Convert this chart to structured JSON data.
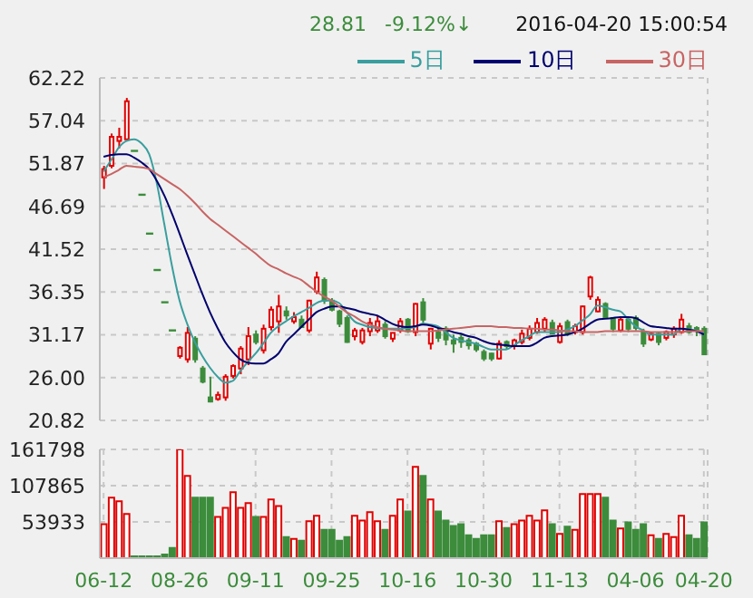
{
  "chart_data": [
    {
      "type": "candlestick",
      "annotations": [
        "28.81",
        "-9.12%↓",
        "2016-04-20 15:00:54"
      ],
      "categories": [
        null,
        null,
        null,
        null,
        null,
        null,
        null,
        null,
        null,
        null,
        null,
        null,
        null,
        null,
        null,
        null,
        null,
        null,
        null,
        null,
        null,
        null,
        null,
        null,
        null,
        null,
        null,
        null,
        null,
        null,
        null,
        null,
        null,
        null,
        null,
        null,
        null,
        null,
        null,
        null,
        null,
        null,
        null,
        null,
        null,
        null,
        null,
        null,
        null,
        null,
        null,
        null,
        null,
        null,
        null,
        null,
        null,
        null,
        null,
        null,
        null,
        null,
        null,
        null,
        null,
        null,
        null,
        null,
        null,
        null,
        null,
        null,
        null,
        null,
        null,
        null,
        null,
        null,
        null,
        null
      ],
      "ohlc": [
        [
          50.2,
          51.6,
          48.8,
          51.2
        ],
        [
          51.6,
          55.5,
          51.3,
          55.1
        ],
        [
          54.6,
          56.2,
          53.7,
          55.1
        ],
        [
          54.8,
          59.8,
          54.8,
          59.4
        ],
        [
          53.4,
          53.4,
          53.4,
          53.4
        ],
        [
          48.1,
          48.1,
          48.1,
          48.1
        ],
        [
          43.4,
          43.4,
          43.4,
          43.4
        ],
        [
          39.0,
          39.0,
          39.0,
          39.0
        ],
        [
          35.1,
          35.1,
          35.1,
          35.1
        ],
        [
          31.7,
          31.7,
          31.7,
          31.7
        ],
        [
          28.6,
          29.8,
          28.3,
          29.6
        ],
        [
          28.2,
          32.1,
          27.8,
          31.4
        ],
        [
          30.7,
          31.0,
          27.8,
          28.2
        ],
        [
          27.1,
          27.4,
          25.3,
          25.5
        ],
        [
          23.6,
          26.1,
          23.0,
          23.1
        ],
        [
          23.4,
          24.3,
          23.2,
          23.9
        ],
        [
          23.6,
          26.4,
          23.2,
          26.1
        ],
        [
          26.2,
          27.6,
          25.9,
          27.4
        ],
        [
          27.1,
          29.8,
          26.4,
          29.5
        ],
        [
          28.2,
          32.1,
          27.5,
          31.0
        ],
        [
          31.2,
          31.7,
          30.0,
          30.3
        ],
        [
          29.3,
          32.4,
          28.9,
          31.9
        ],
        [
          32.1,
          34.6,
          31.7,
          34.2
        ],
        [
          32.8,
          36.0,
          31.4,
          34.6
        ],
        [
          34.0,
          34.6,
          33.0,
          33.5
        ],
        [
          32.8,
          33.9,
          32.5,
          33.3
        ],
        [
          33.0,
          33.5,
          32.0,
          32.1
        ],
        [
          31.7,
          35.4,
          31.4,
          35.3
        ],
        [
          36.4,
          38.8,
          36.1,
          38.1
        ],
        [
          37.8,
          38.1,
          34.9,
          35.3
        ],
        [
          35.3,
          35.6,
          34.0,
          34.2
        ],
        [
          34.0,
          34.2,
          32.1,
          32.5
        ],
        [
          33.2,
          33.5,
          30.2,
          30.3
        ],
        [
          31.0,
          32.0,
          30.5,
          31.7
        ],
        [
          30.3,
          32.0,
          30.0,
          31.7
        ],
        [
          31.6,
          33.2,
          31.0,
          32.6
        ],
        [
          31.7,
          33.5,
          31.4,
          32.8
        ],
        [
          32.4,
          32.8,
          30.7,
          31.0
        ],
        [
          30.7,
          31.4,
          30.3,
          31.4
        ],
        [
          31.7,
          33.2,
          31.4,
          32.8
        ],
        [
          33.0,
          33.2,
          31.4,
          31.6
        ],
        [
          31.5,
          35.0,
          31.0,
          34.9
        ],
        [
          35.1,
          35.6,
          32.6,
          33.0
        ],
        [
          30.1,
          32.0,
          29.4,
          31.9
        ],
        [
          31.5,
          31.9,
          30.3,
          30.8
        ],
        [
          31.9,
          32.2,
          29.9,
          30.6
        ],
        [
          30.5,
          31.2,
          29.0,
          30.1
        ],
        [
          30.8,
          31.2,
          29.6,
          30.3
        ],
        [
          30.5,
          30.8,
          29.4,
          29.9
        ],
        [
          30.1,
          30.3,
          29.1,
          29.4
        ],
        [
          29.1,
          29.4,
          28.0,
          28.3
        ],
        [
          28.9,
          29.0,
          28.0,
          28.3
        ],
        [
          28.3,
          30.5,
          28.2,
          30.1
        ],
        [
          30.3,
          30.5,
          29.4,
          29.8
        ],
        [
          29.8,
          30.7,
          29.4,
          30.5
        ],
        [
          30.3,
          31.8,
          30.0,
          31.3
        ],
        [
          30.8,
          32.3,
          30.5,
          31.9
        ],
        [
          31.5,
          33.2,
          31.3,
          32.6
        ],
        [
          31.9,
          33.3,
          31.5,
          33.0
        ],
        [
          32.6,
          33.0,
          31.2,
          31.3
        ],
        [
          30.3,
          32.6,
          30.1,
          32.2
        ],
        [
          32.7,
          33.0,
          31.0,
          31.3
        ],
        [
          31.5,
          32.5,
          31.2,
          32.2
        ],
        [
          31.5,
          34.7,
          31.2,
          34.6
        ],
        [
          35.8,
          38.3,
          35.4,
          38.1
        ],
        [
          34.0,
          35.8,
          33.9,
          35.4
        ],
        [
          34.9,
          35.1,
          33.1,
          33.3
        ],
        [
          33.2,
          33.3,
          31.5,
          31.9
        ],
        [
          31.7,
          33.2,
          31.5,
          33.0
        ],
        [
          33.0,
          33.3,
          31.5,
          31.9
        ],
        [
          33.2,
          33.5,
          31.7,
          32.0
        ],
        [
          31.5,
          31.9,
          29.7,
          30.1
        ],
        [
          30.6,
          31.5,
          30.4,
          31.3
        ],
        [
          31.3,
          31.5,
          29.9,
          30.3
        ],
        [
          30.8,
          31.7,
          30.5,
          31.5
        ],
        [
          31.2,
          32.2,
          30.8,
          31.9
        ],
        [
          31.5,
          33.7,
          31.3,
          33.0
        ],
        [
          32.2,
          32.6,
          31.3,
          31.5
        ],
        [
          32.0,
          32.2,
          31.0,
          31.7
        ],
        [
          31.9,
          32.2,
          28.81,
          28.81
        ]
      ],
      "colors": [
        "#e00000",
        "#e00000",
        "#e00000",
        "#e00000",
        "#3c8c3c",
        "#3c8c3c",
        "#3c8c3c",
        "#3c8c3c",
        "#3c8c3c",
        "#3c8c3c",
        "#e00000",
        "#e00000",
        "#3c8c3c",
        "#3c8c3c",
        "#3c8c3c",
        "#e00000",
        "#e00000",
        "#e00000",
        "#e00000",
        "#e00000",
        "#3c8c3c",
        "#e00000",
        "#e00000",
        "#e00000",
        "#3c8c3c",
        "#e00000",
        "#3c8c3c",
        "#e00000",
        "#e00000",
        "#3c8c3c",
        "#3c8c3c",
        "#3c8c3c",
        "#3c8c3c",
        "#e00000",
        "#e00000",
        "#e00000",
        "#e00000",
        "#3c8c3c",
        "#e00000",
        "#e00000",
        "#3c8c3c",
        "#e00000",
        "#3c8c3c",
        "#e00000",
        "#3c8c3c",
        "#3c8c3c",
        "#3c8c3c",
        "#3c8c3c",
        "#3c8c3c",
        "#3c8c3c",
        "#3c8c3c",
        "#3c8c3c",
        "#e00000",
        "#3c8c3c",
        "#e00000",
        "#e00000",
        "#e00000",
        "#e00000",
        "#e00000",
        "#3c8c3c",
        "#e00000",
        "#3c8c3c",
        "#e00000",
        "#e00000",
        "#e00000",
        "#e00000",
        "#3c8c3c",
        "#3c8c3c",
        "#e00000",
        "#3c8c3c",
        "#3c8c3c",
        "#3c8c3c",
        "#e00000",
        "#3c8c3c",
        "#e00000",
        "#e00000",
        "#e00000",
        "#3c8c3c",
        "#3c8c3c",
        "#3c8c3c"
      ],
      "series": [
        {
          "name": "5日",
          "type": "line",
          "color": "#3a9e9e",
          "values": [
            50.9,
            52.3,
            53.8,
            54.6,
            54.8,
            54.3,
            53.0,
            49.5,
            44.5,
            39.5,
            35.3,
            32.5,
            30.3,
            28.6,
            27.2,
            26.1,
            25.4,
            25.6,
            26.8,
            27.9,
            28.9,
            30.1,
            31.4,
            32.2,
            32.8,
            33.4,
            33.9,
            34.4,
            35.0,
            35.3,
            35.3,
            35.0,
            33.9,
            32.8,
            32.4,
            32.1,
            32.0,
            31.9,
            31.9,
            31.9,
            32.0,
            32.1,
            32.5,
            32.4,
            32.2,
            31.5,
            30.8,
            30.5,
            30.3,
            30.1,
            29.7,
            29.4,
            29.4,
            29.4,
            29.9,
            30.5,
            31.0,
            31.5,
            31.5,
            31.5,
            31.5,
            31.8,
            32.2,
            32.9,
            33.6,
            34.7,
            34.5,
            34.2,
            34.0,
            33.1,
            32.2,
            31.7,
            31.2,
            31.2,
            31.2,
            31.2,
            31.9,
            31.8,
            31.7,
            31.5
          ]
        },
        {
          "name": "10日",
          "type": "line",
          "color": "#00006e",
          "values": [
            52.7,
            52.9,
            53.0,
            53.0,
            52.6,
            52.0,
            51.2,
            49.8,
            48.0,
            45.8,
            43.4,
            40.9,
            38.5,
            36.1,
            33.9,
            32.0,
            30.3,
            29.1,
            28.2,
            27.8,
            27.7,
            27.7,
            28.2,
            28.9,
            30.3,
            31.2,
            32.1,
            33.0,
            33.9,
            34.3,
            34.6,
            34.6,
            34.4,
            34.2,
            33.9,
            33.7,
            33.5,
            33.0,
            32.5,
            32.2,
            32.1,
            32.2,
            32.4,
            32.3,
            32.0,
            31.8,
            31.5,
            31.3,
            31.0,
            30.8,
            30.4,
            30.1,
            30.0,
            29.9,
            29.8,
            29.8,
            29.8,
            30.2,
            30.8,
            31.0,
            31.1,
            31.2,
            31.5,
            31.9,
            32.5,
            33.0,
            33.1,
            33.2,
            33.3,
            33.3,
            33.2,
            32.7,
            32.2,
            32.1,
            32.0,
            31.9,
            31.9,
            31.8,
            31.6,
            31.2
          ]
        },
        {
          "name": "30日",
          "type": "line",
          "color": "#c86464",
          "values": [
            50.2,
            50.6,
            51.1,
            51.6,
            51.5,
            51.4,
            51.2,
            50.6,
            50.0,
            49.4,
            48.8,
            48.0,
            47.1,
            46.1,
            45.2,
            44.5,
            43.8,
            43.1,
            42.4,
            41.7,
            41.0,
            40.2,
            39.5,
            39.1,
            38.6,
            38.2,
            37.8,
            37.1,
            36.4,
            35.8,
            35.3,
            34.6,
            33.9,
            33.4,
            32.8,
            32.4,
            32.1,
            31.9,
            31.8,
            31.7,
            31.6,
            31.6,
            31.6,
            31.6,
            31.7,
            31.8,
            31.9,
            32.0,
            32.1,
            32.2,
            32.2,
            32.2,
            32.1,
            32.1,
            32.0,
            32.0,
            31.9,
            31.9,
            31.8,
            31.8,
            31.7,
            31.6,
            31.6,
            31.5,
            31.5,
            31.5,
            31.6,
            31.6,
            31.6,
            31.6,
            31.6,
            31.6,
            31.5,
            31.5,
            31.5,
            31.5,
            31.5,
            31.6,
            31.6,
            31.6
          ]
        }
      ],
      "ylim": [
        20.82,
        62.22
      ],
      "yticks": [
        {
          "value": 20.82,
          "label": "20.82"
        },
        {
          "value": 26,
          "label": "26.00"
        },
        31.17,
        36.35,
        41.52,
        46.69,
        51.87,
        57.04,
        62.22
      ],
      "grid": true,
      "legend": "top right",
      "tick_labels": "y"
    },
    {
      "type": "bar",
      "categories": [
        "06-12",
        null,
        null,
        null,
        null,
        null,
        null,
        null,
        null,
        null,
        "08-26",
        null,
        null,
        null,
        null,
        null,
        null,
        null,
        null,
        null,
        "09-11",
        null,
        null,
        null,
        null,
        null,
        null,
        null,
        null,
        null,
        "09-25",
        null,
        null,
        null,
        null,
        null,
        null,
        null,
        null,
        null,
        "10-16",
        null,
        null,
        null,
        null,
        null,
        null,
        null,
        null,
        null,
        "10-30",
        null,
        null,
        null,
        null,
        null,
        null,
        null,
        null,
        null,
        "11-13",
        null,
        null,
        null,
        null,
        null,
        null,
        null,
        null,
        null,
        "04-06",
        null,
        null,
        null,
        null,
        null,
        null,
        null,
        null,
        "04-20"
      ],
      "values": [
        50400,
        90000,
        84600,
        65700,
        2700,
        2700,
        2700,
        2700,
        5400,
        15300,
        161798,
        122400,
        90000,
        90000,
        90000,
        61200,
        74700,
        98100,
        74700,
        81900,
        61200,
        61200,
        87300,
        77400,
        31500,
        28800,
        26100,
        54900,
        63000,
        42300,
        42300,
        26100,
        31500,
        63000,
        55800,
        68400,
        54900,
        42300,
        63000,
        87300,
        69300,
        135900,
        122400,
        87300,
        69300,
        55800,
        47700,
        50400,
        34200,
        28800,
        34200,
        34200,
        54900,
        45000,
        50400,
        55800,
        63000,
        55800,
        71100,
        50400,
        36000,
        46800,
        42300,
        95400,
        95400,
        95400,
        90000,
        55800,
        44100,
        53100,
        42300,
        50400,
        34200,
        28800,
        36000,
        31500,
        63000,
        34200,
        28800,
        53100
      ],
      "colors": [
        "#e00000",
        "#e00000",
        "#e00000",
        "#e00000",
        "#3c8c3c",
        "#3c8c3c",
        "#3c8c3c",
        "#3c8c3c",
        "#3c8c3c",
        "#3c8c3c",
        "#e00000",
        "#e00000",
        "#3c8c3c",
        "#3c8c3c",
        "#3c8c3c",
        "#e00000",
        "#e00000",
        "#e00000",
        "#e00000",
        "#e00000",
        "#3c8c3c",
        "#e00000",
        "#e00000",
        "#e00000",
        "#3c8c3c",
        "#e00000",
        "#3c8c3c",
        "#e00000",
        "#e00000",
        "#3c8c3c",
        "#3c8c3c",
        "#3c8c3c",
        "#3c8c3c",
        "#e00000",
        "#e00000",
        "#e00000",
        "#e00000",
        "#3c8c3c",
        "#e00000",
        "#e00000",
        "#3c8c3c",
        "#e00000",
        "#3c8c3c",
        "#e00000",
        "#3c8c3c",
        "#3c8c3c",
        "#3c8c3c",
        "#3c8c3c",
        "#3c8c3c",
        "#3c8c3c",
        "#3c8c3c",
        "#3c8c3c",
        "#e00000",
        "#3c8c3c",
        "#e00000",
        "#e00000",
        "#e00000",
        "#e00000",
        "#e00000",
        "#3c8c3c",
        "#e00000",
        "#3c8c3c",
        "#e00000",
        "#e00000",
        "#e00000",
        "#e00000",
        "#3c8c3c",
        "#3c8c3c",
        "#e00000",
        "#3c8c3c",
        "#3c8c3c",
        "#3c8c3c",
        "#e00000",
        "#3c8c3c",
        "#e00000",
        "#e00000",
        "#e00000",
        "#3c8c3c",
        "#3c8c3c",
        "#3c8c3c"
      ],
      "ylim": [
        0,
        161798
      ],
      "yticks": [
        53933,
        107865,
        161798
      ],
      "grid": true
    }
  ]
}
